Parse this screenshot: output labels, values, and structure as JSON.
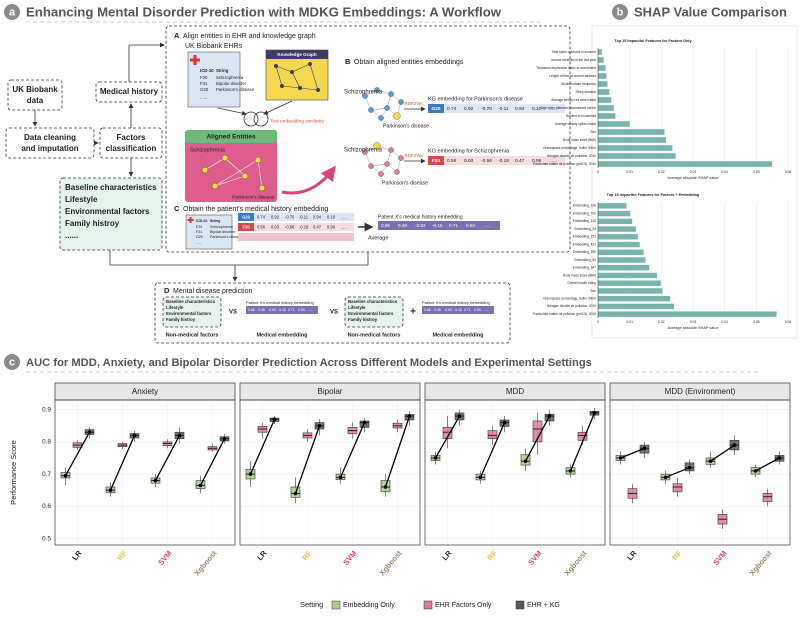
{
  "panel_a": {
    "label": "a",
    "title": "Enhancing Mental Disorder Prediction with MDKG Embeddings: A Workflow",
    "uk_biobank": [
      "UK Biobank",
      "data"
    ],
    "cleaning": [
      "Data cleaning",
      "and imputation"
    ],
    "factors": [
      "Factors",
      "classification"
    ],
    "medical_history": "Medical history",
    "factor_list": [
      "Baseline characteristics",
      "Lifestyle",
      "Environmental factors",
      "Family histroy",
      "......"
    ],
    "steps": [
      {
        "letter": "A",
        "title": "Align entities in EHR and knowledge graph"
      },
      {
        "letter": "B",
        "title": "Obtain aligned entities embeddings"
      },
      {
        "letter": "C",
        "title": "Obtain the patient's medical history embedding"
      },
      {
        "letter": "D",
        "title": "Mental disease prediction"
      }
    ],
    "ehr": {
      "title": "UK Biobank EHRs",
      "headers": [
        "ICD-10",
        "String"
      ],
      "rows": [
        [
          "F20",
          "Schizophrenia"
        ],
        [
          "F31",
          "Bipolar disorder"
        ],
        [
          "G20",
          "Parkinson's disease"
        ]
      ],
      "more": "......"
    },
    "kg_title": "Knowledge Graph",
    "similarity": "Text embedding similarity",
    "aligned": "Aligned Entities",
    "entities": [
      "Schizophrenia",
      "Parkinson's disease"
    ],
    "method": "RDF2Vec",
    "embeddings": [
      {
        "caption": "KG embedding for Parkinson's disease",
        "code": "G20",
        "values": [
          "0.74",
          "0.92",
          "-0.70",
          "-0.11",
          "0.94",
          "0.10",
          "......"
        ]
      },
      {
        "caption": "KG embedding for Schizophrenia",
        "code": "F20",
        "values": [
          "0.56",
          "0.03",
          "-0.56",
          "-0.18",
          "0.47",
          "0.96",
          "......"
        ]
      }
    ],
    "patient_caption": "Patient X's medical history embedding",
    "patient_values": [
      "0.65",
      "0.48",
      "-0.63",
      "-0.15",
      "0.71",
      "0.53",
      "......"
    ],
    "average": "Average",
    "non_medical": "Non-medical factors",
    "medical_embedding": "Medical embedding",
    "vs": "VS",
    "plus": "+"
  },
  "panel_b": {
    "label": "b",
    "title": "SHAP Value Comparison"
  },
  "panel_c": {
    "label": "c",
    "title": "AUC for MDD, Anxiety, and Bipolar Disorder Prediction Across Different Models and Experimental Settings"
  },
  "chart_data": [
    {
      "type": "hbar",
      "title": "Top 15 Impactful Features for Factors Only",
      "xlabel": "Average absolute SHAP value",
      "color": "#78b3ad",
      "categories": [
        "Time spent outdoors in summer",
        "Income received in the last year",
        "Townsend deprivation index at recruitment",
        "Length of time at current address",
        "Alcohol intake frequency",
        "Sleep duration",
        "Average weekly red wine intake",
        "Age when attended assessment centre",
        "Number in household",
        "Average weekly spirits intake",
        "Sex",
        "Body mass index (BMI)",
        "Greenspace percentage, buffer 300m",
        "Nitrogen dioxide air pollution; 2010",
        "Particulate matter air pollution (pm2.5); 2010"
      ],
      "values": [
        0.0012,
        0.0018,
        0.0024,
        0.0027,
        0.003,
        0.0036,
        0.0042,
        0.005,
        0.0055,
        0.01,
        0.021,
        0.0215,
        0.0235,
        0.0245,
        0.055
      ],
      "xlim": [
        0,
        0.06
      ],
      "xticks": [
        0,
        0.01,
        0.02,
        0.03,
        0.04,
        0.05,
        0.06
      ],
      "grid": true
    },
    {
      "type": "hbar",
      "title": "Top 15 Impactful Features for Factors + Embedding",
      "xlabel": "Average absolute SHAP value",
      "color": "#78b3ad",
      "categories": [
        "Embedding_166",
        "Embedding_702",
        "Embedding_515",
        "Embedding_39",
        "Embedding_221",
        "Embedding_431",
        "Embedding_590",
        "Embedding_84",
        "Embedding_347",
        "Body mass index (BMI)",
        "Overall health rating",
        "Sex",
        "Greenspace percentage, buffer 300m",
        "Nitrogen dioxide air pollution; 2010",
        "Particulate matter air pollution (pm2.5); 2010"
      ],
      "values": [
        0.009,
        0.0102,
        0.0108,
        0.012,
        0.0126,
        0.0132,
        0.0144,
        0.015,
        0.0162,
        0.0186,
        0.0198,
        0.0204,
        0.0228,
        0.024,
        0.0564
      ],
      "xlim": [
        0,
        0.06
      ],
      "xticks": [
        0,
        0.01,
        0.02,
        0.03,
        0.04,
        0.05,
        0.06
      ],
      "grid": true
    },
    {
      "type": "box",
      "title": "Anxiety",
      "ylabel": "Performance Score",
      "legend_title": "Setting",
      "categories": [
        "LR",
        "RF",
        "SVM",
        "Xgboost"
      ],
      "category_colors": [
        "#222222",
        "#e3c34a",
        "#d8437a",
        "#9a8a6a"
      ],
      "ylim": [
        0.48,
        0.93
      ],
      "yticks": [
        0.5,
        0.6,
        0.7,
        0.8,
        0.9
      ],
      "grid": true,
      "series": [
        {
          "name": "Embedding Only",
          "color": "#a9cc8c",
          "values": [
            {
              "min": 0.665,
              "q1": 0.688,
              "median": 0.695,
              "q3": 0.705,
              "max": 0.72
            },
            {
              "min": 0.63,
              "q1": 0.642,
              "median": 0.65,
              "q3": 0.66,
              "max": 0.675
            },
            {
              "min": 0.66,
              "q1": 0.672,
              "median": 0.68,
              "q3": 0.688,
              "max": 0.7
            },
            {
              "min": 0.64,
              "q1": 0.655,
              "median": 0.665,
              "q3": 0.68,
              "max": 0.695
            }
          ]
        },
        {
          "name": "EHR Factors Only",
          "color": "#e07a9a",
          "values": [
            {
              "min": 0.775,
              "q1": 0.783,
              "median": 0.79,
              "q3": 0.797,
              "max": 0.805
            },
            {
              "min": 0.778,
              "q1": 0.785,
              "median": 0.79,
              "q3": 0.795,
              "max": 0.8
            },
            {
              "min": 0.78,
              "q1": 0.788,
              "median": 0.795,
              "q3": 0.8,
              "max": 0.808
            },
            {
              "min": 0.77,
              "q1": 0.775,
              "median": 0.78,
              "q3": 0.785,
              "max": 0.795
            }
          ]
        },
        {
          "name": "EHR + KG",
          "color": "#5a5a5a",
          "values": [
            {
              "min": 0.81,
              "q1": 0.823,
              "median": 0.83,
              "q3": 0.838,
              "max": 0.845
            },
            {
              "min": 0.8,
              "q1": 0.812,
              "median": 0.82,
              "q3": 0.826,
              "max": 0.835
            },
            {
              "min": 0.795,
              "q1": 0.81,
              "median": 0.82,
              "q3": 0.83,
              "max": 0.845
            },
            {
              "min": 0.795,
              "q1": 0.803,
              "median": 0.81,
              "q3": 0.816,
              "max": 0.825
            }
          ]
        }
      ]
    },
    {
      "type": "box",
      "title": "Bipolar",
      "categories": [
        "LR",
        "RF",
        "SVM",
        "Xgboost"
      ],
      "category_colors": [
        "#222222",
        "#e3c34a",
        "#d8437a",
        "#9a8a6a"
      ],
      "ylim": [
        0.48,
        0.93
      ],
      "yticks": [
        0.5,
        0.6,
        0.7,
        0.8,
        0.9
      ],
      "grid": true,
      "series": [
        {
          "name": "Embedding Only",
          "color": "#a9cc8c",
          "values": [
            {
              "min": 0.66,
              "q1": 0.685,
              "median": 0.7,
              "q3": 0.715,
              "max": 0.74
            },
            {
              "min": 0.61,
              "q1": 0.628,
              "median": 0.64,
              "q3": 0.66,
              "max": 0.69
            },
            {
              "min": 0.67,
              "q1": 0.683,
              "median": 0.69,
              "q3": 0.7,
              "max": 0.72
            },
            {
              "min": 0.63,
              "q1": 0.645,
              "median": 0.66,
              "q3": 0.68,
              "max": 0.7
            }
          ]
        },
        {
          "name": "EHR Factors Only",
          "color": "#e07a9a",
          "values": [
            {
              "min": 0.81,
              "q1": 0.83,
              "median": 0.84,
              "q3": 0.848,
              "max": 0.86
            },
            {
              "min": 0.8,
              "q1": 0.812,
              "median": 0.82,
              "q3": 0.828,
              "max": 0.84
            },
            {
              "min": 0.81,
              "q1": 0.825,
              "median": 0.835,
              "q3": 0.845,
              "max": 0.86
            },
            {
              "min": 0.83,
              "q1": 0.843,
              "median": 0.85,
              "q3": 0.858,
              "max": 0.87
            }
          ]
        },
        {
          "name": "EHR + KG",
          "color": "#5a5a5a",
          "values": [
            {
              "min": 0.855,
              "q1": 0.863,
              "median": 0.87,
              "q3": 0.874,
              "max": 0.88
            },
            {
              "min": 0.82,
              "q1": 0.84,
              "median": 0.85,
              "q3": 0.86,
              "max": 0.87
            },
            {
              "min": 0.83,
              "q1": 0.845,
              "median": 0.86,
              "q3": 0.865,
              "max": 0.875
            },
            {
              "min": 0.85,
              "q1": 0.868,
              "median": 0.88,
              "q3": 0.885,
              "max": 0.895
            }
          ]
        }
      ]
    },
    {
      "type": "box",
      "title": "MDD",
      "categories": [
        "LR",
        "RF",
        "SVM",
        "Xgboost"
      ],
      "category_colors": [
        "#222222",
        "#e3c34a",
        "#d8437a",
        "#9a8a6a"
      ],
      "ylim": [
        0.48,
        0.93
      ],
      "yticks": [
        0.5,
        0.6,
        0.7,
        0.8,
        0.9
      ],
      "grid": true,
      "series": [
        {
          "name": "Embedding Only",
          "color": "#a9cc8c",
          "values": [
            {
              "min": 0.73,
              "q1": 0.742,
              "median": 0.75,
              "q3": 0.758,
              "max": 0.77
            },
            {
              "min": 0.67,
              "q1": 0.682,
              "median": 0.69,
              "q3": 0.7,
              "max": 0.71
            },
            {
              "min": 0.71,
              "q1": 0.728,
              "median": 0.74,
              "q3": 0.76,
              "max": 0.78
            },
            {
              "min": 0.69,
              "q1": 0.7,
              "median": 0.71,
              "q3": 0.72,
              "max": 0.73
            }
          ]
        },
        {
          "name": "EHR Factors Only",
          "color": "#e07a9a",
          "values": [
            {
              "min": 0.78,
              "q1": 0.81,
              "median": 0.83,
              "q3": 0.845,
              "max": 0.88
            },
            {
              "min": 0.79,
              "q1": 0.81,
              "median": 0.82,
              "q3": 0.835,
              "max": 0.85
            },
            {
              "min": 0.76,
              "q1": 0.8,
              "median": 0.84,
              "q3": 0.865,
              "max": 0.89
            },
            {
              "min": 0.79,
              "q1": 0.805,
              "median": 0.82,
              "q3": 0.83,
              "max": 0.85
            }
          ]
        },
        {
          "name": "EHR + KG",
          "color": "#5a5a5a",
          "values": [
            {
              "min": 0.85,
              "q1": 0.868,
              "median": 0.88,
              "q3": 0.89,
              "max": 0.9
            },
            {
              "min": 0.83,
              "q1": 0.848,
              "median": 0.86,
              "q3": 0.868,
              "max": 0.88
            },
            {
              "min": 0.85,
              "q1": 0.865,
              "median": 0.88,
              "q3": 0.886,
              "max": 0.9
            },
            {
              "min": 0.87,
              "q1": 0.883,
              "median": 0.89,
              "q3": 0.895,
              "max": 0.905
            }
          ]
        }
      ]
    },
    {
      "type": "box",
      "title": "MDD (Environment)",
      "categories": [
        "LR",
        "RF",
        "SVM",
        "Xgboost"
      ],
      "category_colors": [
        "#222222",
        "#e3c34a",
        "#d8437a",
        "#9a8a6a"
      ],
      "ylim": [
        0.48,
        0.93
      ],
      "yticks": [
        0.5,
        0.6,
        0.7,
        0.8,
        0.9
      ],
      "grid": true,
      "series": [
        {
          "name": "Embedding Only",
          "color": "#a9cc8c",
          "values": [
            {
              "min": 0.73,
              "q1": 0.742,
              "median": 0.75,
              "q3": 0.758,
              "max": 0.77
            },
            {
              "min": 0.67,
              "q1": 0.682,
              "median": 0.69,
              "q3": 0.7,
              "max": 0.71
            },
            {
              "min": 0.72,
              "q1": 0.73,
              "median": 0.74,
              "q3": 0.75,
              "max": 0.77
            },
            {
              "min": 0.69,
              "q1": 0.7,
              "median": 0.71,
              "q3": 0.72,
              "max": 0.73
            }
          ]
        },
        {
          "name": "EHR Factors Only",
          "color": "#e07a9a",
          "values": [
            {
              "min": 0.61,
              "q1": 0.625,
              "median": 0.64,
              "q3": 0.655,
              "max": 0.67
            },
            {
              "min": 0.63,
              "q1": 0.645,
              "median": 0.66,
              "q3": 0.67,
              "max": 0.69
            },
            {
              "min": 0.53,
              "q1": 0.545,
              "median": 0.56,
              "q3": 0.575,
              "max": 0.59
            },
            {
              "min": 0.6,
              "q1": 0.615,
              "median": 0.63,
              "q3": 0.64,
              "max": 0.655
            }
          ]
        },
        {
          "name": "EHR + KG",
          "color": "#5a5a5a",
          "values": [
            {
              "min": 0.75,
              "q1": 0.765,
              "median": 0.78,
              "q3": 0.79,
              "max": 0.8
            },
            {
              "min": 0.7,
              "q1": 0.71,
              "median": 0.72,
              "q3": 0.735,
              "max": 0.745
            },
            {
              "min": 0.76,
              "q1": 0.775,
              "median": 0.79,
              "q3": 0.805,
              "max": 0.82
            },
            {
              "min": 0.73,
              "q1": 0.74,
              "median": 0.75,
              "q3": 0.758,
              "max": 0.77
            }
          ]
        }
      ]
    }
  ]
}
